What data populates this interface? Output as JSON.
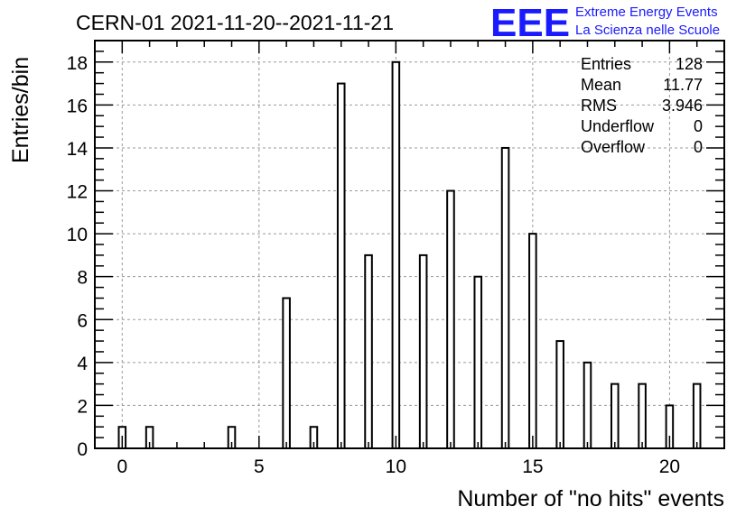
{
  "logo": {
    "mark": "EEE",
    "line1": "Extreme Energy Events",
    "line2": "La Scienza nelle Scuole",
    "color": "#1a1aff"
  },
  "stats": [
    {
      "label": "Entries",
      "value": "128"
    },
    {
      "label": "Mean",
      "value": "11.77"
    },
    {
      "label": "RMS",
      "value": "3.946"
    },
    {
      "label": "Underflow",
      "value": "0"
    },
    {
      "label": "Overflow",
      "value": "0"
    }
  ],
  "chart_data": {
    "type": "bar",
    "title": "CERN-01 2021-11-20--2021-11-21",
    "xlabel": "Number of \"no hits\" events",
    "ylabel": "Entries/bin",
    "xlim": [
      -1,
      22
    ],
    "ylim": [
      0,
      19
    ],
    "xticks": [
      0,
      5,
      10,
      15,
      20
    ],
    "yticks": [
      0,
      2,
      4,
      6,
      8,
      10,
      12,
      14,
      16,
      18
    ],
    "grid": true,
    "bar_width": 0.25,
    "x": [
      0,
      1,
      4,
      6,
      7,
      8,
      9,
      10,
      11,
      12,
      13,
      14,
      15,
      16,
      17,
      18,
      19,
      20,
      21
    ],
    "values": [
      1,
      1,
      1,
      7,
      1,
      17,
      9,
      18,
      9,
      12,
      8,
      14,
      10,
      5,
      4,
      3,
      3,
      2,
      3
    ]
  }
}
